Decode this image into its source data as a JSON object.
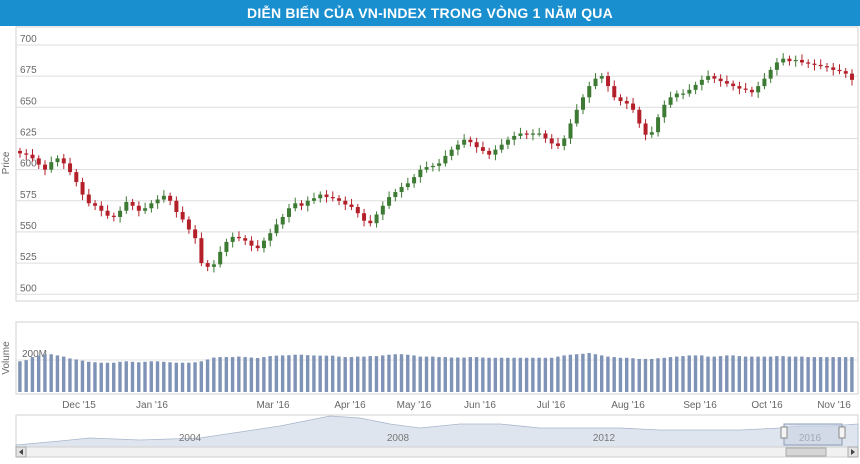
{
  "title": "DIỄN BIẾN CỦA VN-INDEX TRONG VÒNG 1 NĂM QUA",
  "colors": {
    "header": "#1a8fd0",
    "up": "#3d7a33",
    "down": "#b3202a",
    "volume": "#7f93b6",
    "grid": "#dddddd",
    "navigator": "#dfe5ee"
  },
  "chart_data": {
    "type": "candlestick",
    "ylabel": "Price",
    "yticks": [
      500,
      525,
      550,
      575,
      600,
      625,
      650,
      675,
      700
    ],
    "ylim": [
      497,
      712
    ],
    "volume_label": "Volume",
    "volume_tick": "200M",
    "x_month_labels": [
      "Dec '15",
      "Jan '16",
      "Mar '16",
      "Apr '16",
      "May '16",
      "Jun '16",
      "Jul '16",
      "Aug '16",
      "Sep '16",
      "Oct '16",
      "Nov '16"
    ],
    "navigator_labels": [
      "2004",
      "2008",
      "2012",
      "2016"
    ],
    "grid": "horizontal",
    "close_series": [
      613,
      612,
      609,
      604,
      600,
      606,
      609,
      605,
      598,
      590,
      580,
      573,
      571,
      567,
      563,
      562,
      567,
      574,
      571,
      567,
      569,
      573,
      576,
      579,
      575,
      566,
      560,
      552,
      545,
      525,
      522,
      524,
      534,
      542,
      546,
      545,
      543,
      539,
      537,
      543,
      549,
      556,
      562,
      569,
      573,
      571,
      575,
      577,
      580,
      578,
      577,
      575,
      572,
      570,
      565,
      559,
      557,
      564,
      571,
      578,
      582,
      586,
      589,
      594,
      600,
      602,
      603,
      605,
      611,
      616,
      620,
      624,
      622,
      618,
      615,
      612,
      616,
      620,
      624,
      627,
      629,
      628,
      629,
      629,
      625,
      621,
      619,
      625,
      637,
      648,
      658,
      667,
      673,
      675,
      667,
      658,
      655,
      653,
      648,
      637,
      628,
      630,
      642,
      652,
      658,
      661,
      661,
      664,
      668,
      672,
      675,
      673,
      671,
      669,
      667,
      665,
      664,
      662,
      667,
      673,
      680,
      686,
      689,
      687,
      688,
      686,
      685,
      684,
      683,
      682,
      680,
      679,
      677,
      672
    ],
    "volume_series": [
      130,
      135,
      148,
      155,
      160,
      160,
      155,
      150,
      142,
      138,
      133,
      128,
      126,
      124,
      124,
      124,
      128,
      130,
      128,
      126,
      128,
      130,
      130,
      128,
      126,
      124,
      124,
      124,
      126,
      130,
      138,
      146,
      148,
      148,
      148,
      150,
      148,
      146,
      144,
      148,
      152,
      154,
      155,
      156,
      158,
      158,
      156,
      155,
      154,
      154,
      154,
      150,
      148,
      148,
      150,
      150,
      152,
      152,
      155,
      158,
      160,
      160,
      158,
      155,
      150,
      150,
      150,
      148,
      148,
      146,
      146,
      146,
      148,
      148,
      146,
      145,
      145,
      145,
      145,
      145,
      145,
      145,
      145,
      145,
      145,
      145,
      150,
      155,
      158,
      160,
      162,
      165,
      160,
      155,
      150,
      148,
      145,
      145,
      143,
      140,
      140,
      140,
      143,
      145,
      148,
      150,
      152,
      155,
      155,
      155,
      150,
      150,
      152,
      155,
      155,
      152,
      150,
      150,
      150,
      150,
      150,
      152,
      152,
      150,
      150,
      150,
      148,
      148,
      148,
      148,
      148,
      148,
      148,
      148
    ]
  }
}
